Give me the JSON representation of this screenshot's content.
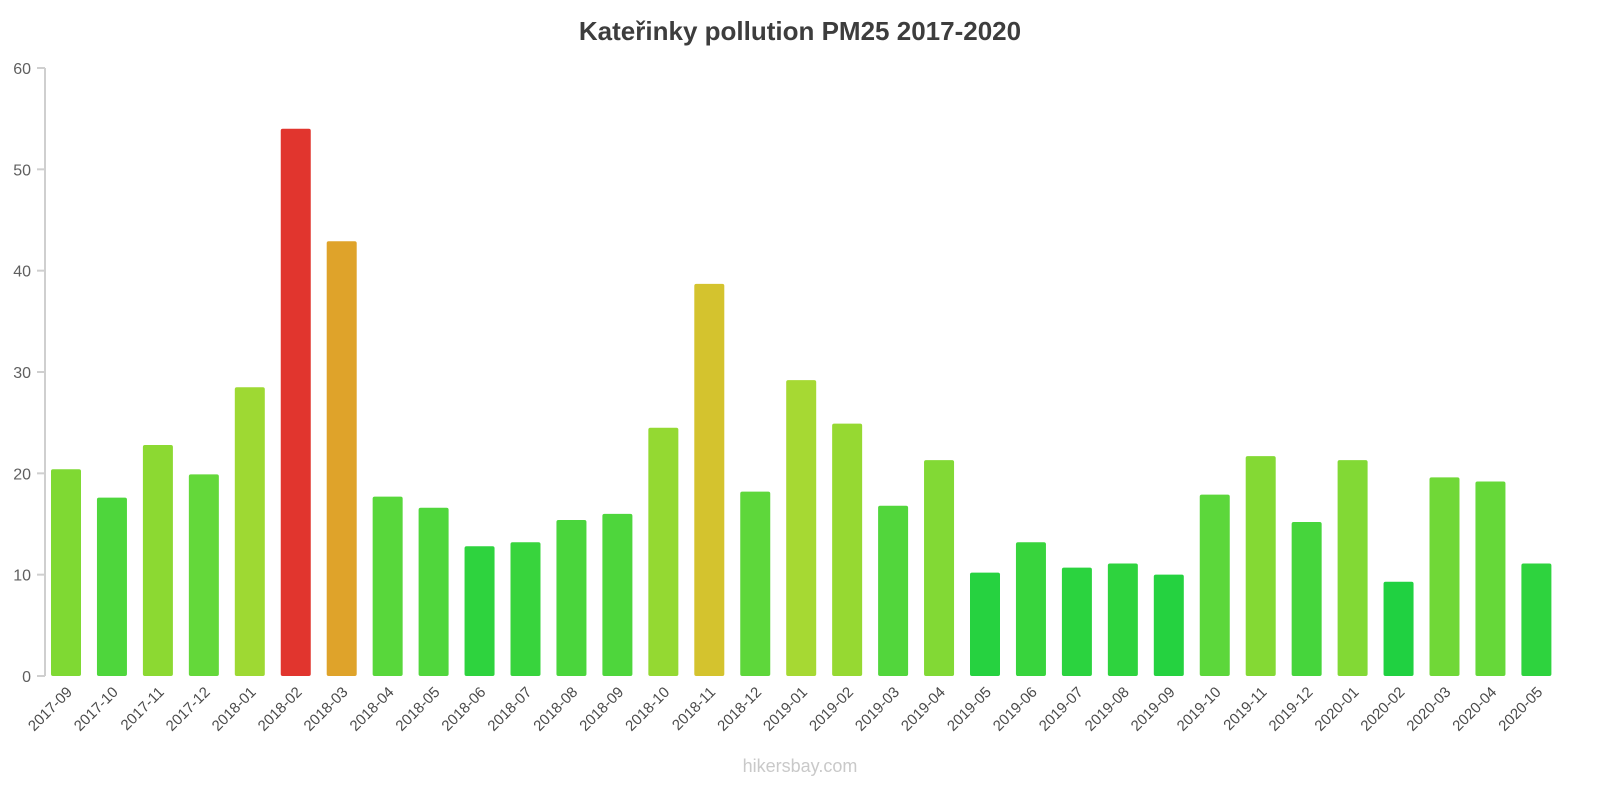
{
  "page": {
    "footer": {
      "watermark": "hikersbay.com"
    }
  },
  "chart_data": {
    "type": "bar",
    "title": "Kateřinky pollution PM25 2017-2020",
    "xlabel": "",
    "ylabel": "",
    "ylim": [
      0,
      60
    ],
    "yticks": [
      0,
      10,
      20,
      30,
      40,
      50,
      60
    ],
    "grid": false,
    "legend": null,
    "categories": [
      "2017-09",
      "2017-10",
      "2017-11",
      "2017-12",
      "2018-01",
      "2018-02",
      "2018-03",
      "2018-04",
      "2018-05",
      "2018-06",
      "2018-07",
      "2018-08",
      "2018-09",
      "2018-10",
      "2018-11",
      "2018-12",
      "2019-01",
      "2019-02",
      "2019-03",
      "2019-04",
      "2019-05",
      "2019-06",
      "2019-07",
      "2019-08",
      "2019-09",
      "2019-10",
      "2019-11",
      "2019-12",
      "2020-01",
      "2020-02",
      "2020-03",
      "2020-04",
      "2020-05"
    ],
    "values": [
      20.4,
      17.6,
      22.8,
      19.9,
      28.5,
      54.0,
      42.9,
      17.7,
      16.6,
      12.8,
      13.2,
      15.4,
      16.0,
      24.5,
      38.7,
      18.2,
      29.2,
      24.9,
      16.8,
      21.3,
      10.2,
      13.2,
      10.7,
      11.1,
      10.0,
      17.9,
      21.7,
      15.2,
      21.3,
      9.3,
      19.6,
      19.2,
      11.1
    ],
    "colors": [
      "#7fd933",
      "#4ed63c",
      "#8cd932",
      "#64d83a",
      "#9ed933",
      "#e1352e",
      "#dfa32a",
      "#58d73b",
      "#50d63c",
      "#2ed33e",
      "#38d43d",
      "#4ad53c",
      "#4ed63c",
      "#94d932",
      "#d4c32e",
      "#5ed73b",
      "#a6d933",
      "#96d932",
      "#52d63c",
      "#82d935",
      "#26d240",
      "#38d43d",
      "#2bd33f",
      "#2ed33e",
      "#25d240",
      "#5cd73b",
      "#84d934",
      "#46d53c",
      "#82d935",
      "#20d141",
      "#70d837",
      "#66d839",
      "#2ed33e"
    ]
  }
}
